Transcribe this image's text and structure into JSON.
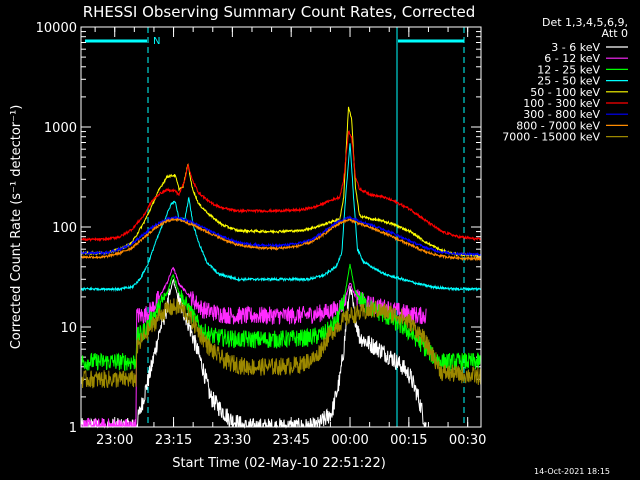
{
  "chart_data": {
    "type": "line",
    "title": "RHESSI Observing Summary Count Rates, Corrected",
    "xlabel": "Start Time (02-May-10 22:51:22)",
    "ylabel": "Corrected Count Rate (s⁻¹ detector⁻¹)",
    "y_scale": "log",
    "ylim": [
      1,
      10000
    ],
    "xlim_minutes_after_start": [
      0,
      102
    ],
    "x_ticks": [
      {
        "label": "23:00",
        "min": 8.6
      },
      {
        "label": "23:15",
        "min": 23.6
      },
      {
        "label": "23:30",
        "min": 38.6
      },
      {
        "label": "23:45",
        "min": 53.6
      },
      {
        "label": "00:00",
        "min": 68.6
      },
      {
        "label": "00:15",
        "min": 83.6
      },
      {
        "label": "00:30",
        "min": 98.6
      }
    ],
    "y_ticks": [
      {
        "label": "1",
        "v": 1
      },
      {
        "label": "10",
        "v": 10
      },
      {
        "label": "100",
        "v": 100
      },
      {
        "label": "1000",
        "v": 1000
      },
      {
        "label": "10000",
        "v": 10000
      }
    ],
    "legend_header": [
      "Det 1,3,4,5,6,9,",
      "Att 0"
    ],
    "night_marker": "N",
    "timestamp": "14-Oct-2021 18:15",
    "series": [
      {
        "name": "3 - 6 keV",
        "color": "#ffffff",
        "points": [
          [
            0,
            1
          ],
          [
            14,
            1
          ],
          [
            16,
            2
          ],
          [
            18,
            4
          ],
          [
            20,
            9
          ],
          [
            22,
            16
          ],
          [
            23.5,
            30
          ],
          [
            25,
            18
          ],
          [
            27,
            12
          ],
          [
            29,
            7
          ],
          [
            31,
            4
          ],
          [
            33,
            2
          ],
          [
            35,
            1.6
          ],
          [
            38,
            1.2
          ],
          [
            42,
            1
          ],
          [
            60,
            1
          ],
          [
            64,
            1.4
          ],
          [
            66,
            3
          ],
          [
            67,
            6
          ],
          [
            68,
            15
          ],
          [
            68.6,
            25
          ],
          [
            69.5,
            15
          ],
          [
            71,
            8
          ],
          [
            73,
            7
          ],
          [
            76,
            6
          ],
          [
            79,
            5
          ],
          [
            82,
            4
          ],
          [
            84,
            3.2
          ],
          [
            86,
            2
          ],
          [
            88,
            1
          ]
        ]
      },
      {
        "name": "6 - 12 keV",
        "color": "#ff2bff",
        "points": [
          [
            0,
            1
          ],
          [
            14,
            1
          ],
          [
            14.2,
            13
          ],
          [
            16,
            13
          ],
          [
            18,
            15
          ],
          [
            20,
            20
          ],
          [
            22,
            28
          ],
          [
            23.5,
            40
          ],
          [
            25,
            27
          ],
          [
            27,
            22
          ],
          [
            29,
            18
          ],
          [
            31,
            15
          ],
          [
            34,
            14
          ],
          [
            38,
            13
          ],
          [
            45,
            13
          ],
          [
            55,
            13
          ],
          [
            60,
            13.5
          ],
          [
            64,
            14.5
          ],
          [
            67,
            17
          ],
          [
            68.6,
            28
          ],
          [
            70,
            20
          ],
          [
            73,
            17
          ],
          [
            76,
            16
          ],
          [
            79,
            15
          ],
          [
            82,
            14
          ],
          [
            86,
            13
          ],
          [
            88,
            13
          ]
        ]
      },
      {
        "name": "12 - 25 keV",
        "color": "#00ff00",
        "points": [
          [
            0,
            4.5
          ],
          [
            14,
            4.5
          ],
          [
            14.2,
            8
          ],
          [
            16,
            9
          ],
          [
            18,
            12
          ],
          [
            20,
            16
          ],
          [
            22,
            22
          ],
          [
            23.5,
            34
          ],
          [
            25,
            22
          ],
          [
            27,
            16
          ],
          [
            29,
            12
          ],
          [
            31,
            9
          ],
          [
            34,
            8
          ],
          [
            40,
            7.5
          ],
          [
            50,
            7.5
          ],
          [
            58,
            7.8
          ],
          [
            62,
            8.5
          ],
          [
            65,
            11
          ],
          [
            67,
            18
          ],
          [
            68.6,
            42
          ],
          [
            70,
            22
          ],
          [
            73,
            16
          ],
          [
            76,
            14
          ],
          [
            79,
            12
          ],
          [
            82,
            10
          ],
          [
            85,
            8
          ],
          [
            88,
            6
          ],
          [
            90,
            5
          ],
          [
            92,
            4.5
          ],
          [
            102,
            4.5
          ]
        ]
      },
      {
        "name": "25 - 50 keV",
        "color": "#00ffff",
        "points": [
          [
            0,
            24
          ],
          [
            10,
            24
          ],
          [
            13,
            25
          ],
          [
            15,
            30
          ],
          [
            17,
            42
          ],
          [
            19,
            70
          ],
          [
            21,
            110
          ],
          [
            23,
            170
          ],
          [
            24,
            180
          ],
          [
            25,
            120
          ],
          [
            26.5,
            120
          ],
          [
            27.5,
            200
          ],
          [
            28.5,
            110
          ],
          [
            30,
            70
          ],
          [
            32,
            45
          ],
          [
            35,
            34
          ],
          [
            40,
            30
          ],
          [
            50,
            30
          ],
          [
            58,
            30
          ],
          [
            62,
            33
          ],
          [
            65,
            40
          ],
          [
            66.5,
            55
          ],
          [
            67.5,
            200
          ],
          [
            68.6,
            700
          ],
          [
            69.5,
            200
          ],
          [
            70.5,
            60
          ],
          [
            72,
            45
          ],
          [
            75,
            38
          ],
          [
            78,
            33
          ],
          [
            82,
            30
          ],
          [
            86,
            27
          ],
          [
            90,
            25
          ],
          [
            95,
            24
          ],
          [
            102,
            24
          ]
        ]
      },
      {
        "name": "50 - 100 keV",
        "color": "#ffff00",
        "points": [
          [
            0,
            55
          ],
          [
            6,
            55
          ],
          [
            10,
            60
          ],
          [
            13,
            70
          ],
          [
            16,
            110
          ],
          [
            18,
            160
          ],
          [
            20,
            240
          ],
          [
            22,
            320
          ],
          [
            24,
            330
          ],
          [
            25,
            240
          ],
          [
            26,
            250
          ],
          [
            27.3,
            430
          ],
          [
            28.3,
            250
          ],
          [
            30,
            170
          ],
          [
            33,
            130
          ],
          [
            36,
            105
          ],
          [
            40,
            92
          ],
          [
            48,
            90
          ],
          [
            56,
            92
          ],
          [
            60,
            100
          ],
          [
            63,
            110
          ],
          [
            66,
            120
          ],
          [
            67,
            200
          ],
          [
            68.2,
            1600
          ],
          [
            69,
            1200
          ],
          [
            70,
            250
          ],
          [
            71,
            130
          ],
          [
            74,
            120
          ],
          [
            77,
            115
          ],
          [
            80,
            105
          ],
          [
            84,
            90
          ],
          [
            88,
            70
          ],
          [
            92,
            58
          ],
          [
            96,
            53
          ],
          [
            102,
            52
          ]
        ]
      },
      {
        "name": "100 - 300 keV",
        "color": "#ff0000",
        "points": [
          [
            0,
            75
          ],
          [
            6,
            75
          ],
          [
            10,
            80
          ],
          [
            13,
            95
          ],
          [
            16,
            130
          ],
          [
            18,
            180
          ],
          [
            20,
            215
          ],
          [
            22,
            235
          ],
          [
            24,
            230
          ],
          [
            25,
            210
          ],
          [
            26.5,
            300
          ],
          [
            27.3,
            420
          ],
          [
            28.3,
            300
          ],
          [
            30,
            220
          ],
          [
            33,
            175
          ],
          [
            36,
            155
          ],
          [
            40,
            145
          ],
          [
            50,
            145
          ],
          [
            56,
            148
          ],
          [
            60,
            160
          ],
          [
            63,
            180
          ],
          [
            66,
            200
          ],
          [
            67,
            300
          ],
          [
            68.2,
            900
          ],
          [
            69,
            800
          ],
          [
            70,
            320
          ],
          [
            71,
            240
          ],
          [
            74,
            210
          ],
          [
            77,
            200
          ],
          [
            80,
            180
          ],
          [
            84,
            150
          ],
          [
            88,
            115
          ],
          [
            92,
            90
          ],
          [
            96,
            80
          ],
          [
            102,
            75
          ]
        ]
      },
      {
        "name": "300 - 800 keV",
        "color": "#0000ff",
        "points": [
          [
            0,
            55
          ],
          [
            6,
            55
          ],
          [
            10,
            60
          ],
          [
            13,
            68
          ],
          [
            16,
            85
          ],
          [
            19,
            105
          ],
          [
            22,
            120
          ],
          [
            24,
            125
          ],
          [
            26,
            120
          ],
          [
            29,
            108
          ],
          [
            32,
            95
          ],
          [
            36,
            80
          ],
          [
            40,
            70
          ],
          [
            45,
            66
          ],
          [
            50,
            65
          ],
          [
            55,
            68
          ],
          [
            59,
            75
          ],
          [
            62,
            90
          ],
          [
            65,
            110
          ],
          [
            67,
            120
          ],
          [
            68.6,
            125
          ],
          [
            71,
            115
          ],
          [
            74,
            105
          ],
          [
            77,
            95
          ],
          [
            80,
            85
          ],
          [
            84,
            72
          ],
          [
            88,
            62
          ],
          [
            92,
            56
          ],
          [
            96,
            54
          ],
          [
            102,
            53
          ]
        ]
      },
      {
        "name": "800 - 7000 keV",
        "color": "#ff8c00",
        "points": [
          [
            0,
            50
          ],
          [
            6,
            50
          ],
          [
            10,
            55
          ],
          [
            13,
            62
          ],
          [
            16,
            78
          ],
          [
            19,
            98
          ],
          [
            22,
            115
          ],
          [
            24,
            120
          ],
          [
            26,
            115
          ],
          [
            29,
            103
          ],
          [
            32,
            90
          ],
          [
            36,
            76
          ],
          [
            40,
            66
          ],
          [
            45,
            62
          ],
          [
            50,
            61
          ],
          [
            55,
            64
          ],
          [
            59,
            71
          ],
          [
            62,
            85
          ],
          [
            65,
            104
          ],
          [
            67,
            114
          ],
          [
            68.6,
            118
          ],
          [
            71,
            108
          ],
          [
            74,
            98
          ],
          [
            77,
            88
          ],
          [
            80,
            78
          ],
          [
            84,
            66
          ],
          [
            88,
            56
          ],
          [
            92,
            51
          ],
          [
            96,
            49
          ],
          [
            102,
            48
          ]
        ]
      },
      {
        "name": "7000 - 15000 keV",
        "color": "#9c8800",
        "points": [
          [
            0,
            3
          ],
          [
            14,
            3
          ],
          [
            14.2,
            6
          ],
          [
            16,
            8
          ],
          [
            18,
            10
          ],
          [
            20,
            13
          ],
          [
            22,
            15
          ],
          [
            24,
            16
          ],
          [
            26,
            15
          ],
          [
            28,
            12
          ],
          [
            30,
            9
          ],
          [
            33,
            6
          ],
          [
            37,
            4.5
          ],
          [
            42,
            4
          ],
          [
            50,
            4
          ],
          [
            56,
            4.2
          ],
          [
            60,
            5
          ],
          [
            63,
            8
          ],
          [
            66,
            11
          ],
          [
            68.6,
            13
          ],
          [
            72,
            14
          ],
          [
            75,
            15
          ],
          [
            78,
            14
          ],
          [
            81,
            13
          ],
          [
            84,
            11
          ],
          [
            87,
            8
          ],
          [
            90,
            5
          ],
          [
            92,
            3.5
          ],
          [
            102,
            3.2
          ]
        ]
      }
    ]
  }
}
